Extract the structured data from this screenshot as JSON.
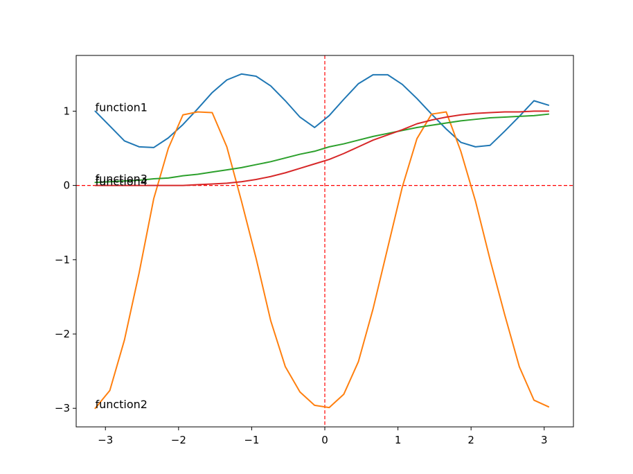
{
  "chart_data": {
    "type": "line",
    "title": "",
    "xlabel": "",
    "ylabel": "",
    "xlim": [
      -3.4,
      3.4
    ],
    "ylim": [
      -3.25,
      1.75
    ],
    "grid": false,
    "x_ticks": [
      -3,
      -2,
      -1,
      0,
      1,
      2,
      3
    ],
    "y_ticks": [
      -3,
      -2,
      -1,
      0,
      1
    ],
    "x_tick_labels": [
      "−3",
      "−2",
      "−1",
      "0",
      "1",
      "2",
      "3"
    ],
    "y_tick_labels": [
      "−3",
      "−2",
      "−1",
      "0",
      "1"
    ],
    "reference_lines": [
      {
        "orientation": "vertical",
        "value": 0,
        "color": "#ff0000",
        "style": "dashed"
      },
      {
        "orientation": "horizontal",
        "value": 0,
        "color": "#ff0000",
        "style": "dashed"
      }
    ],
    "x": [
      -3.14,
      -2.94,
      -2.74,
      -2.54,
      -2.34,
      -2.14,
      -1.94,
      -1.74,
      -1.54,
      -1.34,
      -1.14,
      -0.94,
      -0.74,
      -0.54,
      -0.34,
      -0.14,
      0.06,
      0.26,
      0.46,
      0.66,
      0.86,
      1.06,
      1.26,
      1.46,
      1.66,
      1.86,
      2.06,
      2.26,
      2.46,
      2.66,
      2.86,
      3.06
    ],
    "series": [
      {
        "color": "#1f77b4",
        "values": [
          1.0,
          0.8,
          0.6,
          0.52,
          0.51,
          0.64,
          0.82,
          1.03,
          1.25,
          1.42,
          1.5,
          1.47,
          1.34,
          1.14,
          0.92,
          0.78,
          0.94,
          1.16,
          1.37,
          1.49,
          1.49,
          1.36,
          1.17,
          0.96,
          0.76,
          0.58,
          0.52,
          0.54,
          0.73,
          0.93,
          1.14,
          1.08
        ],
        "annotation": {
          "text": "function1",
          "x": -3.14,
          "y": 1.0
        }
      },
      {
        "color": "#ff7f0e",
        "values": [
          -3.0,
          -2.76,
          -2.08,
          -1.18,
          -0.18,
          0.5,
          0.95,
          0.99,
          0.98,
          0.52,
          -0.21,
          -0.98,
          -1.82,
          -2.44,
          -2.78,
          -2.96,
          -2.99,
          -2.81,
          -2.37,
          -1.66,
          -0.84,
          -0.02,
          0.63,
          0.96,
          0.99,
          0.46,
          -0.21,
          -1.0,
          -1.74,
          -2.44,
          -2.89,
          -2.98
        ],
        "annotation": {
          "text": "function2",
          "x": -3.14,
          "y": -3.0
        }
      },
      {
        "color": "#2ca02c",
        "values": [
          0.04,
          0.05,
          0.06,
          0.07,
          0.09,
          0.1,
          0.13,
          0.15,
          0.18,
          0.21,
          0.24,
          0.28,
          0.32,
          0.37,
          0.42,
          0.46,
          0.52,
          0.56,
          0.61,
          0.66,
          0.7,
          0.74,
          0.78,
          0.81,
          0.84,
          0.87,
          0.89,
          0.91,
          0.92,
          0.93,
          0.94,
          0.96
        ],
        "annotation": {
          "text": "function3",
          "x": -3.14,
          "y": 0.04
        }
      },
      {
        "color": "#d62728",
        "values": [
          0.0,
          0.0,
          0.0,
          0.0,
          0.0,
          0.0,
          0.0,
          0.01,
          0.02,
          0.03,
          0.05,
          0.08,
          0.12,
          0.17,
          0.23,
          0.29,
          0.35,
          0.43,
          0.52,
          0.61,
          0.68,
          0.75,
          0.83,
          0.88,
          0.92,
          0.95,
          0.97,
          0.98,
          0.99,
          0.99,
          1.0,
          1.0
        ],
        "annotation": {
          "text": "function4",
          "x": -3.14,
          "y": 0.0
        }
      }
    ]
  }
}
